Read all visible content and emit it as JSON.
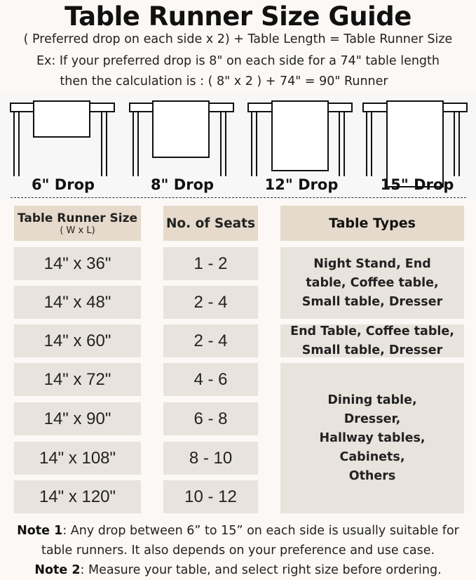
{
  "title": "Table Runner Size Guide",
  "formula": "( Preferred drop on each side x 2) + Table Length = Table Runner Size",
  "example_line1": "Ex: If your preferred drop is 8\" on each side for a 74\" table length",
  "example_line2": "then the calculation is : ( 8\" x 2 ) + 74\" = 90\" Runner",
  "drops": [
    "6\" Drop",
    "8\" Drop",
    "12\" Drop",
    "15\" Drop"
  ],
  "table": {
    "headers": {
      "size": "Table Runner Size",
      "size_sub": "( W x L)",
      "seats": "No. of Seats",
      "types": "Table Types"
    },
    "sizes": [
      "14\" x 36\"",
      "14\" x 48\"",
      "14\" x 60\"",
      "14\" x 72\"",
      "14\" x 90\"",
      "14\" x 108\"",
      "14\" x 120\""
    ],
    "seats": [
      "1 - 2",
      "2 - 4",
      "2 - 4",
      "4 - 6",
      "6 - 8",
      "8 - 10",
      "10 - 12"
    ],
    "types": [
      "Night Stand, End table, Coffee table, Small table, Dresser",
      "End Table, Coffee table, Small table, Dresser",
      "Dining table, Dresser, Hallway tables, Cabinets, Others"
    ]
  },
  "notes": {
    "note1_label": "Note 1",
    "note1_text": ": Any drop between 6” to 15” on each side is usually suitable for",
    "note1_text2": "table runners. It also depends on your preference and use case.",
    "note2_label": "Note 2",
    "note2_text": ": Measure your table, and select right size before ordering."
  },
  "colors": {
    "header_cell": "#e5dacb",
    "body_cell": "#e9e3de",
    "background": "#fbf8f5"
  }
}
